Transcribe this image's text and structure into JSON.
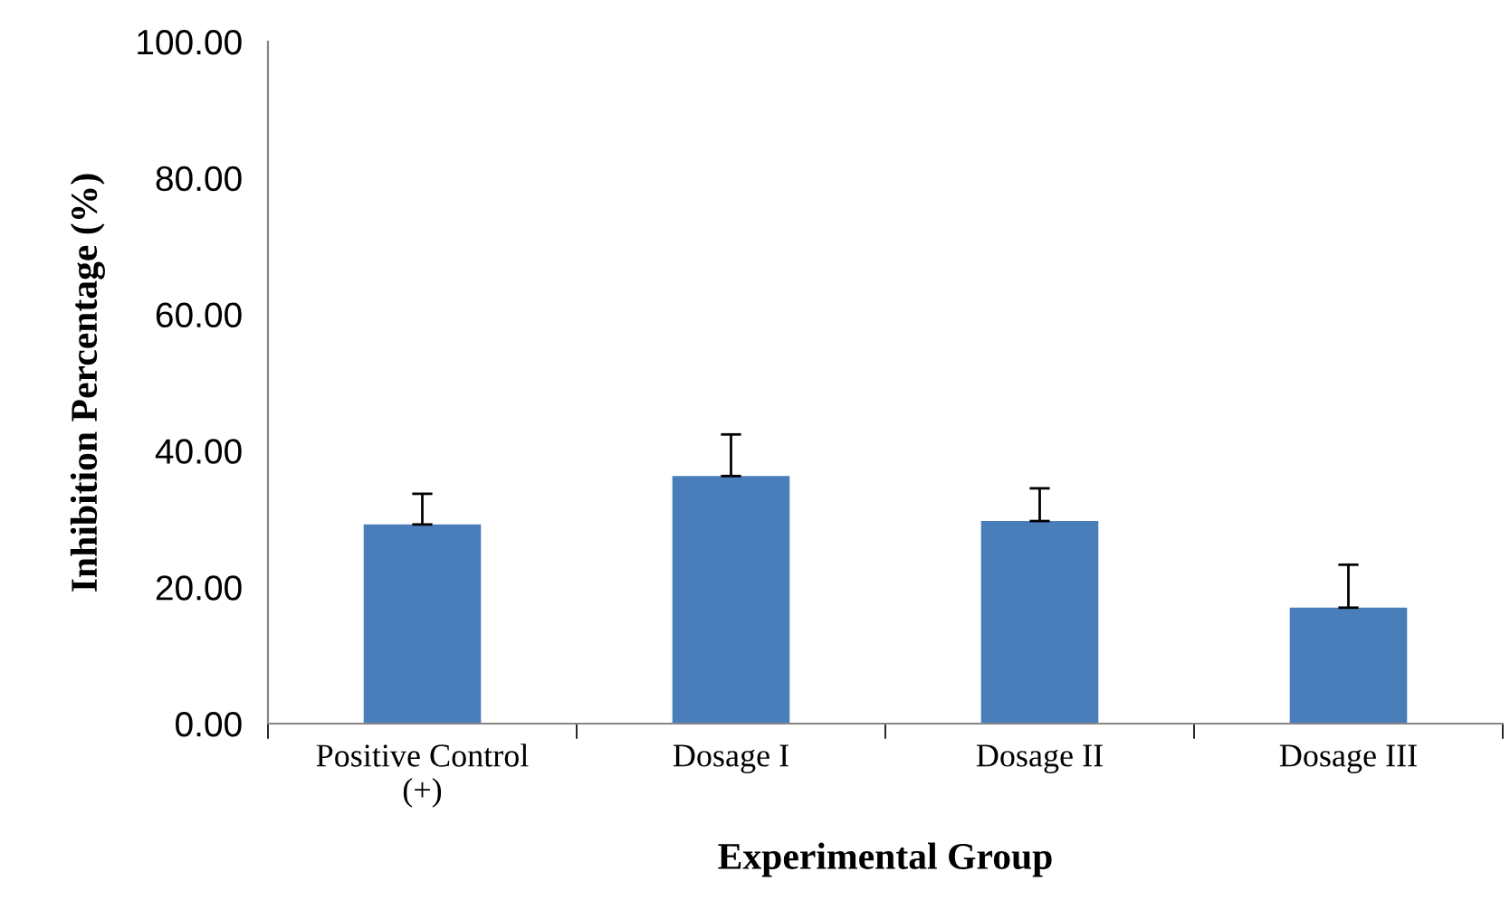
{
  "chart_data": {
    "type": "bar",
    "xlabel": "Experimental Group",
    "ylabel": "Inhibition Percentage (%)",
    "categories": [
      "Positive Control\n(+)",
      "Dosage I",
      "Dosage II",
      "Dosage III"
    ],
    "values": [
      29.2,
      36.3,
      29.7,
      17.0
    ],
    "errors": [
      [
        29.2,
        33.7
      ],
      [
        36.3,
        42.4
      ],
      [
        29.7,
        34.5
      ],
      [
        17.0,
        23.3
      ]
    ],
    "color": "#4a7ebb",
    "ylim": [
      0,
      100
    ],
    "yticks": [
      {
        "value": 0,
        "label": "0.00"
      },
      {
        "value": 20,
        "label": "20.00"
      },
      {
        "value": 40,
        "label": "40.00"
      },
      {
        "value": 60,
        "label": "60.00"
      },
      {
        "value": 80,
        "label": "80.00"
      },
      {
        "value": 100,
        "label": "100.00"
      }
    ],
    "grid": false,
    "legend": false
  }
}
